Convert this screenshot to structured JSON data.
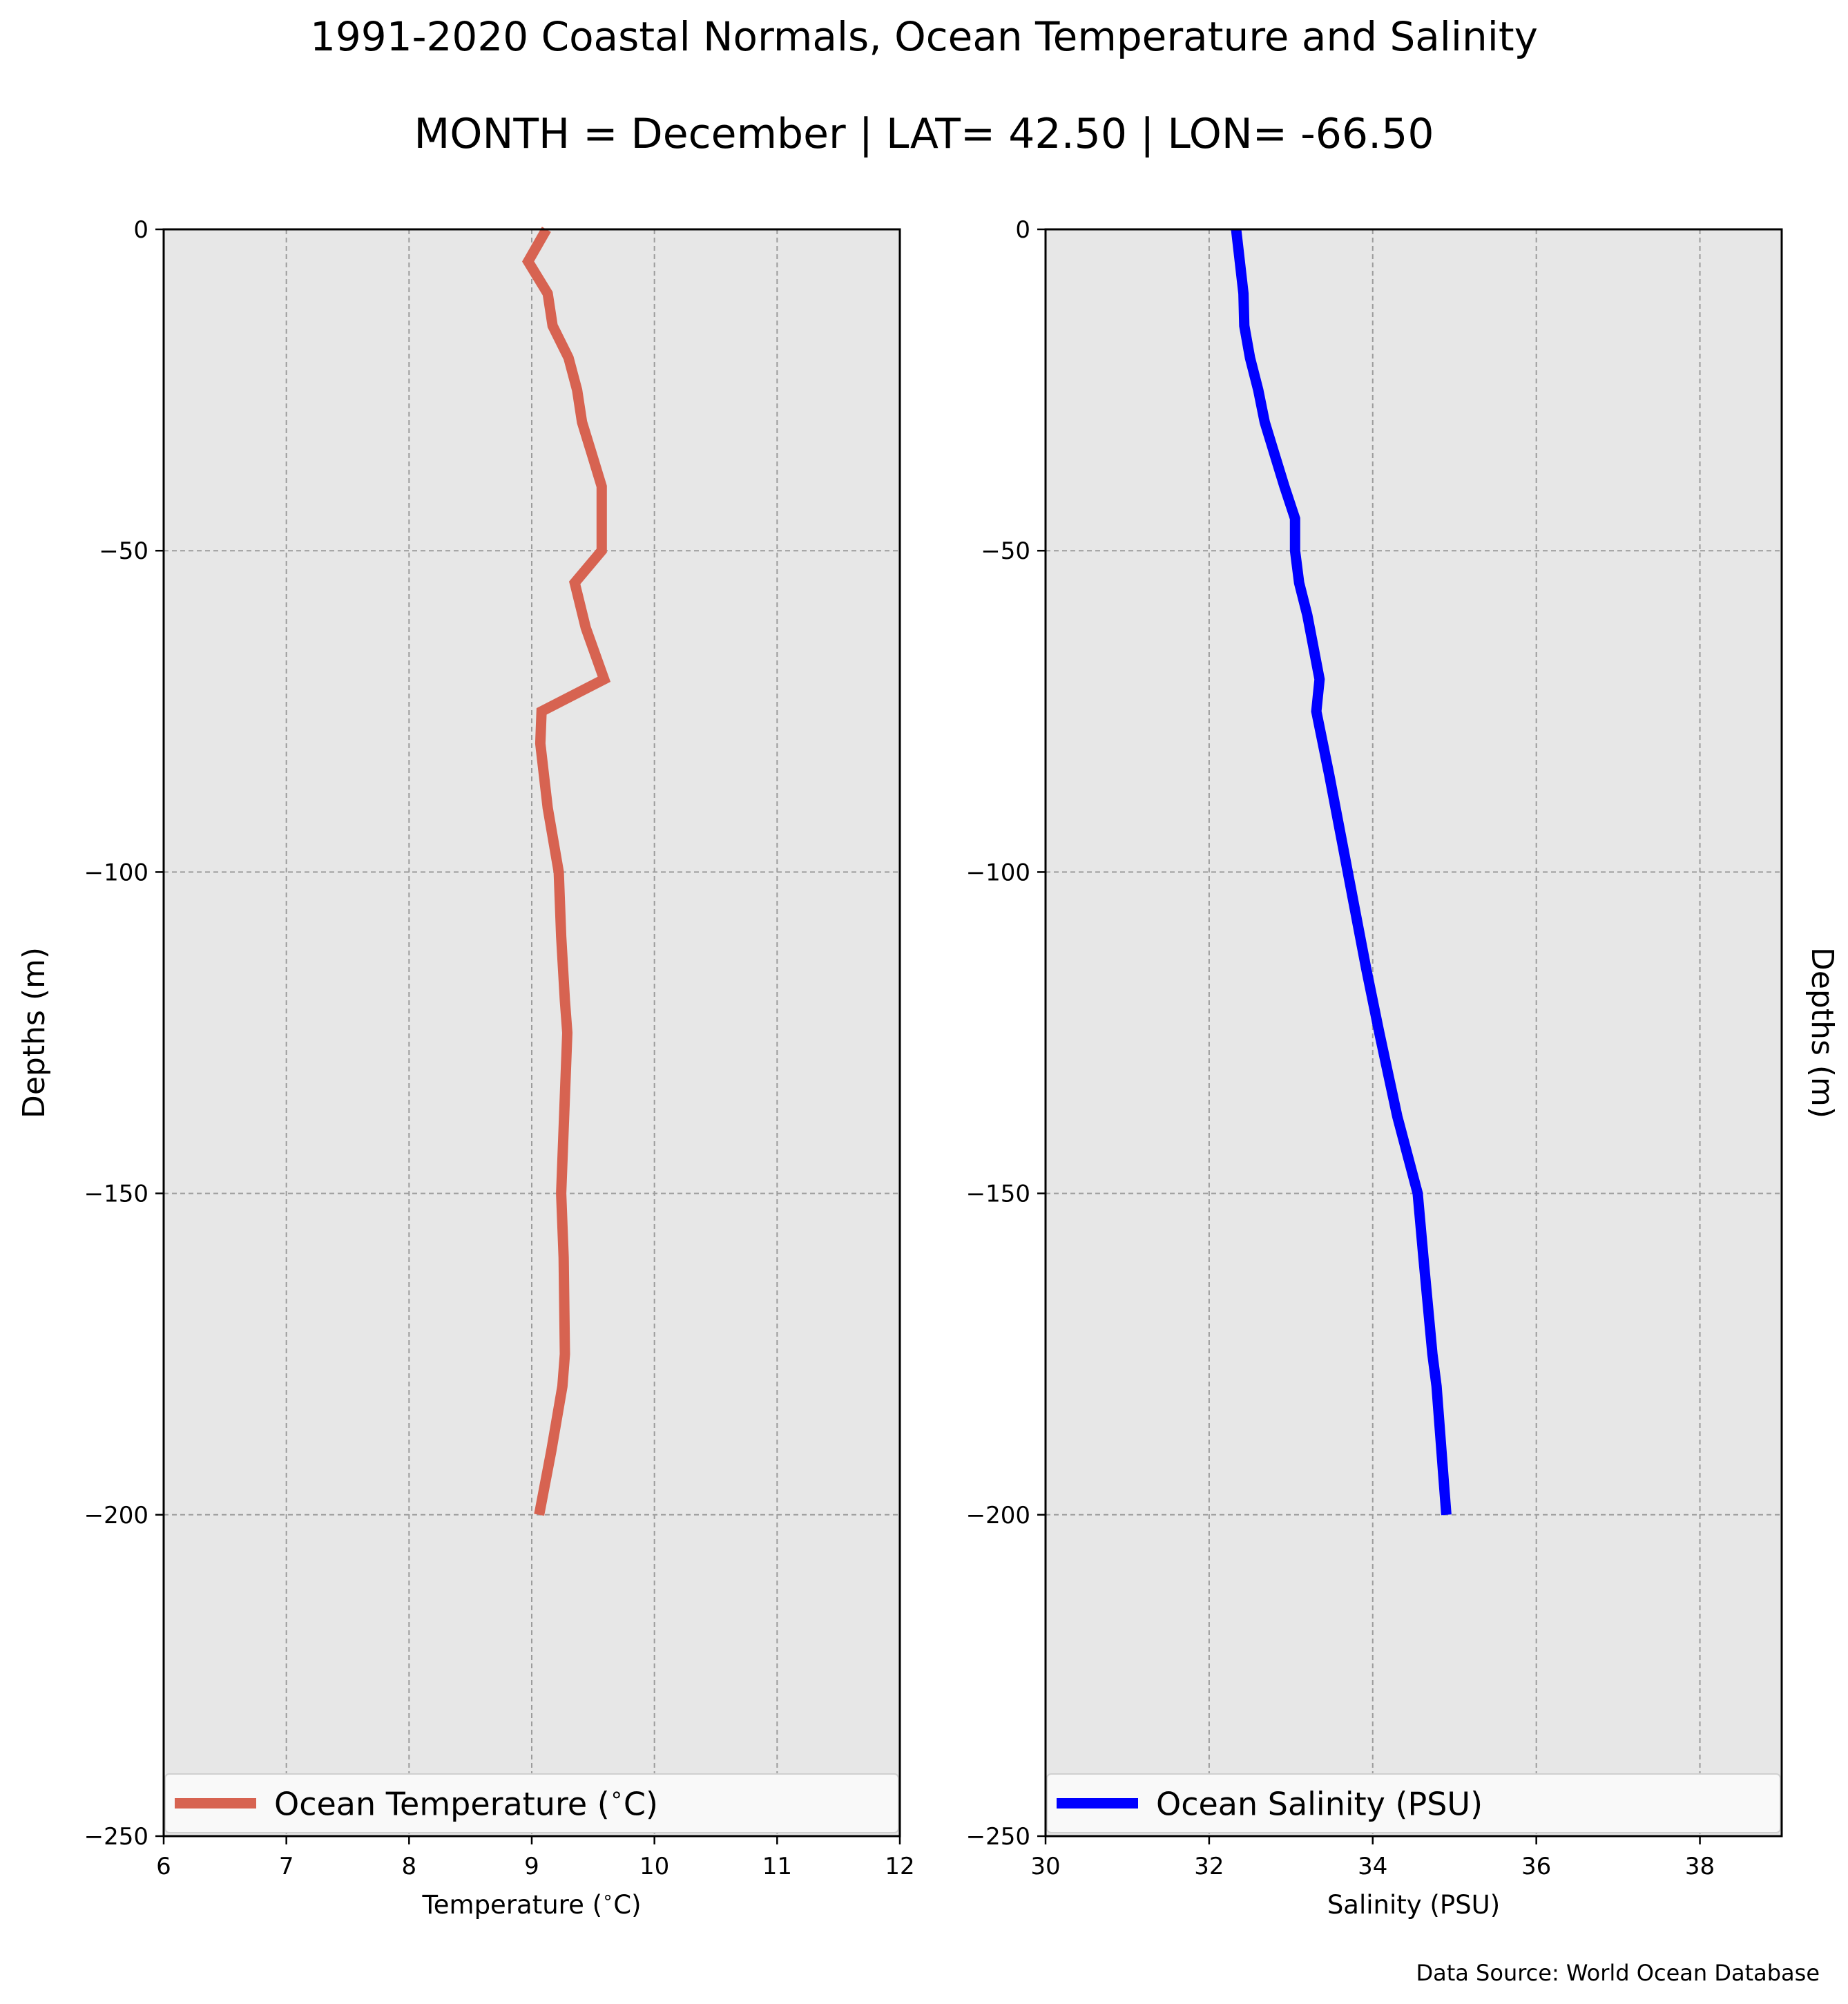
{
  "title": "1991-2020 Coastal Normals, Ocean Temperature and Salinity",
  "subtitle": "MONTH = December | LAT= 42.50 | LON= -66.50",
  "source": "Data Source: World Ocean Database",
  "chart_data": [
    {
      "type": "line",
      "title": "",
      "xlabel": "Temperature ($^\\circ$C)",
      "ylabel": "Depths (m)",
      "xlim": [
        6,
        12
      ],
      "ylim": [
        -250,
        0
      ],
      "xticks": [
        6,
        7,
        8,
        9,
        10,
        11,
        12
      ],
      "xtick_labels": [
        "6",
        "7",
        "8",
        "9",
        "10",
        "11",
        "12"
      ],
      "yticks": [
        0,
        -50,
        -100,
        -150,
        -200,
        -250
      ],
      "ytick_labels": [
        "0",
        "−50",
        "−100",
        "−150",
        "−200",
        "−250"
      ],
      "grid": true,
      "legend": "lower center",
      "series": [
        {
          "name": "Ocean Temperature ($^\\circ$C)",
          "color": "#d76351",
          "x": [
            9.12,
            8.97,
            9.13,
            9.17,
            9.3,
            9.37,
            9.41,
            9.49,
            9.57,
            9.57,
            9.57,
            9.57,
            9.35,
            9.44,
            9.59,
            9.08,
            9.07,
            9.13,
            9.22,
            9.24,
            9.27,
            9.29,
            9.24,
            9.26,
            9.27,
            9.25,
            9.16,
            9.06
          ],
          "y": [
            0,
            -5,
            -10,
            -15,
            -20,
            -25,
            -30,
            -35,
            -40,
            -45,
            -50,
            -50,
            -55,
            -62,
            -70,
            -75,
            -80,
            -90,
            -100,
            -110,
            -120,
            -125,
            -150,
            -160,
            -175,
            -180,
            -190,
            -200
          ]
        }
      ]
    },
    {
      "type": "line",
      "title": "",
      "xlabel": "Salinity (PSU)",
      "ylabel": "Depths (m)",
      "xlim": [
        30,
        39
      ],
      "ylim": [
        -250,
        0
      ],
      "xticks": [
        30,
        32,
        34,
        36,
        38
      ],
      "xtick_labels": [
        "30",
        "32",
        "34",
        "36",
        "38"
      ],
      "yticks": [
        0,
        -50,
        -100,
        -150,
        -200,
        -250
      ],
      "ytick_labels": [
        "0",
        "−50",
        "−100",
        "−150",
        "−200",
        "−250"
      ],
      "grid": true,
      "legend": "lower center",
      "series": [
        {
          "name": "Ocean Salinity (PSU)",
          "color": "#0000ff",
          "x": [
            32.33,
            32.42,
            32.43,
            32.5,
            32.6,
            32.68,
            32.8,
            32.92,
            33.05,
            33.05,
            33.1,
            33.2,
            33.35,
            33.31,
            33.47,
            33.62,
            33.77,
            33.92,
            34.08,
            34.3,
            34.55,
            34.62,
            34.73,
            34.78,
            34.87,
            34.9
          ],
          "y": [
            0,
            -10,
            -15,
            -20,
            -25,
            -30,
            -35,
            -40,
            -45,
            -50,
            -55,
            -60,
            -70,
            -75,
            -85,
            -95,
            -105,
            -115,
            -125,
            -138,
            -150,
            -160,
            -175,
            -180,
            -195,
            -200
          ]
        }
      ]
    }
  ]
}
